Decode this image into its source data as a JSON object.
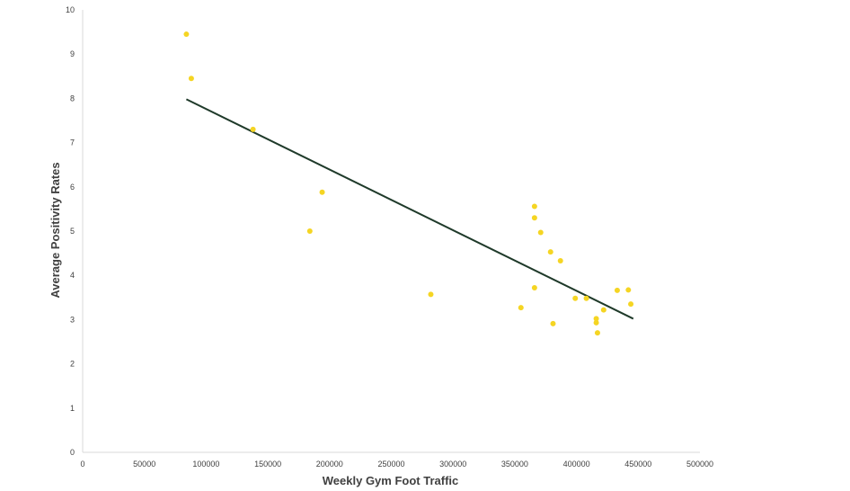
{
  "chart_data": {
    "type": "scatter",
    "title": "",
    "xlabel": "Weekly Gym Foot Traffic",
    "ylabel": "Average Positivity Rates",
    "xlim": [
      0,
      500000
    ],
    "ylim": [
      0,
      10
    ],
    "x_ticks": [
      "0",
      "50000",
      "100000",
      "150000",
      "200000",
      "250000",
      "300000",
      "350000",
      "400000",
      "450000",
      "500000"
    ],
    "y_ticks": [
      "0",
      "1",
      "2",
      "3",
      "4",
      "5",
      "6",
      "7",
      "8",
      "9",
      "10"
    ],
    "grid": false,
    "legend": "none",
    "marker_color": "#f5d523",
    "trendline_color": "#1f3a2a",
    "points": [
      {
        "x": 84000,
        "y": 9.45
      },
      {
        "x": 88000,
        "y": 8.45
      },
      {
        "x": 138000,
        "y": 7.3
      },
      {
        "x": 184000,
        "y": 5.0
      },
      {
        "x": 194000,
        "y": 5.88
      },
      {
        "x": 282000,
        "y": 3.57
      },
      {
        "x": 355000,
        "y": 3.27
      },
      {
        "x": 366000,
        "y": 5.56
      },
      {
        "x": 366000,
        "y": 5.3
      },
      {
        "x": 366000,
        "y": 3.72
      },
      {
        "x": 371000,
        "y": 4.97
      },
      {
        "x": 379000,
        "y": 4.53
      },
      {
        "x": 381000,
        "y": 2.91
      },
      {
        "x": 387000,
        "y": 4.33
      },
      {
        "x": 399000,
        "y": 3.48
      },
      {
        "x": 408000,
        "y": 3.48
      },
      {
        "x": 416000,
        "y": 3.02
      },
      {
        "x": 416000,
        "y": 2.93
      },
      {
        "x": 417000,
        "y": 2.7
      },
      {
        "x": 422000,
        "y": 3.22
      },
      {
        "x": 433000,
        "y": 3.66
      },
      {
        "x": 442000,
        "y": 3.67
      },
      {
        "x": 444000,
        "y": 3.35
      }
    ],
    "trendline": {
      "x": [
        84000,
        446000
      ],
      "y": [
        7.98,
        3.02
      ]
    }
  }
}
